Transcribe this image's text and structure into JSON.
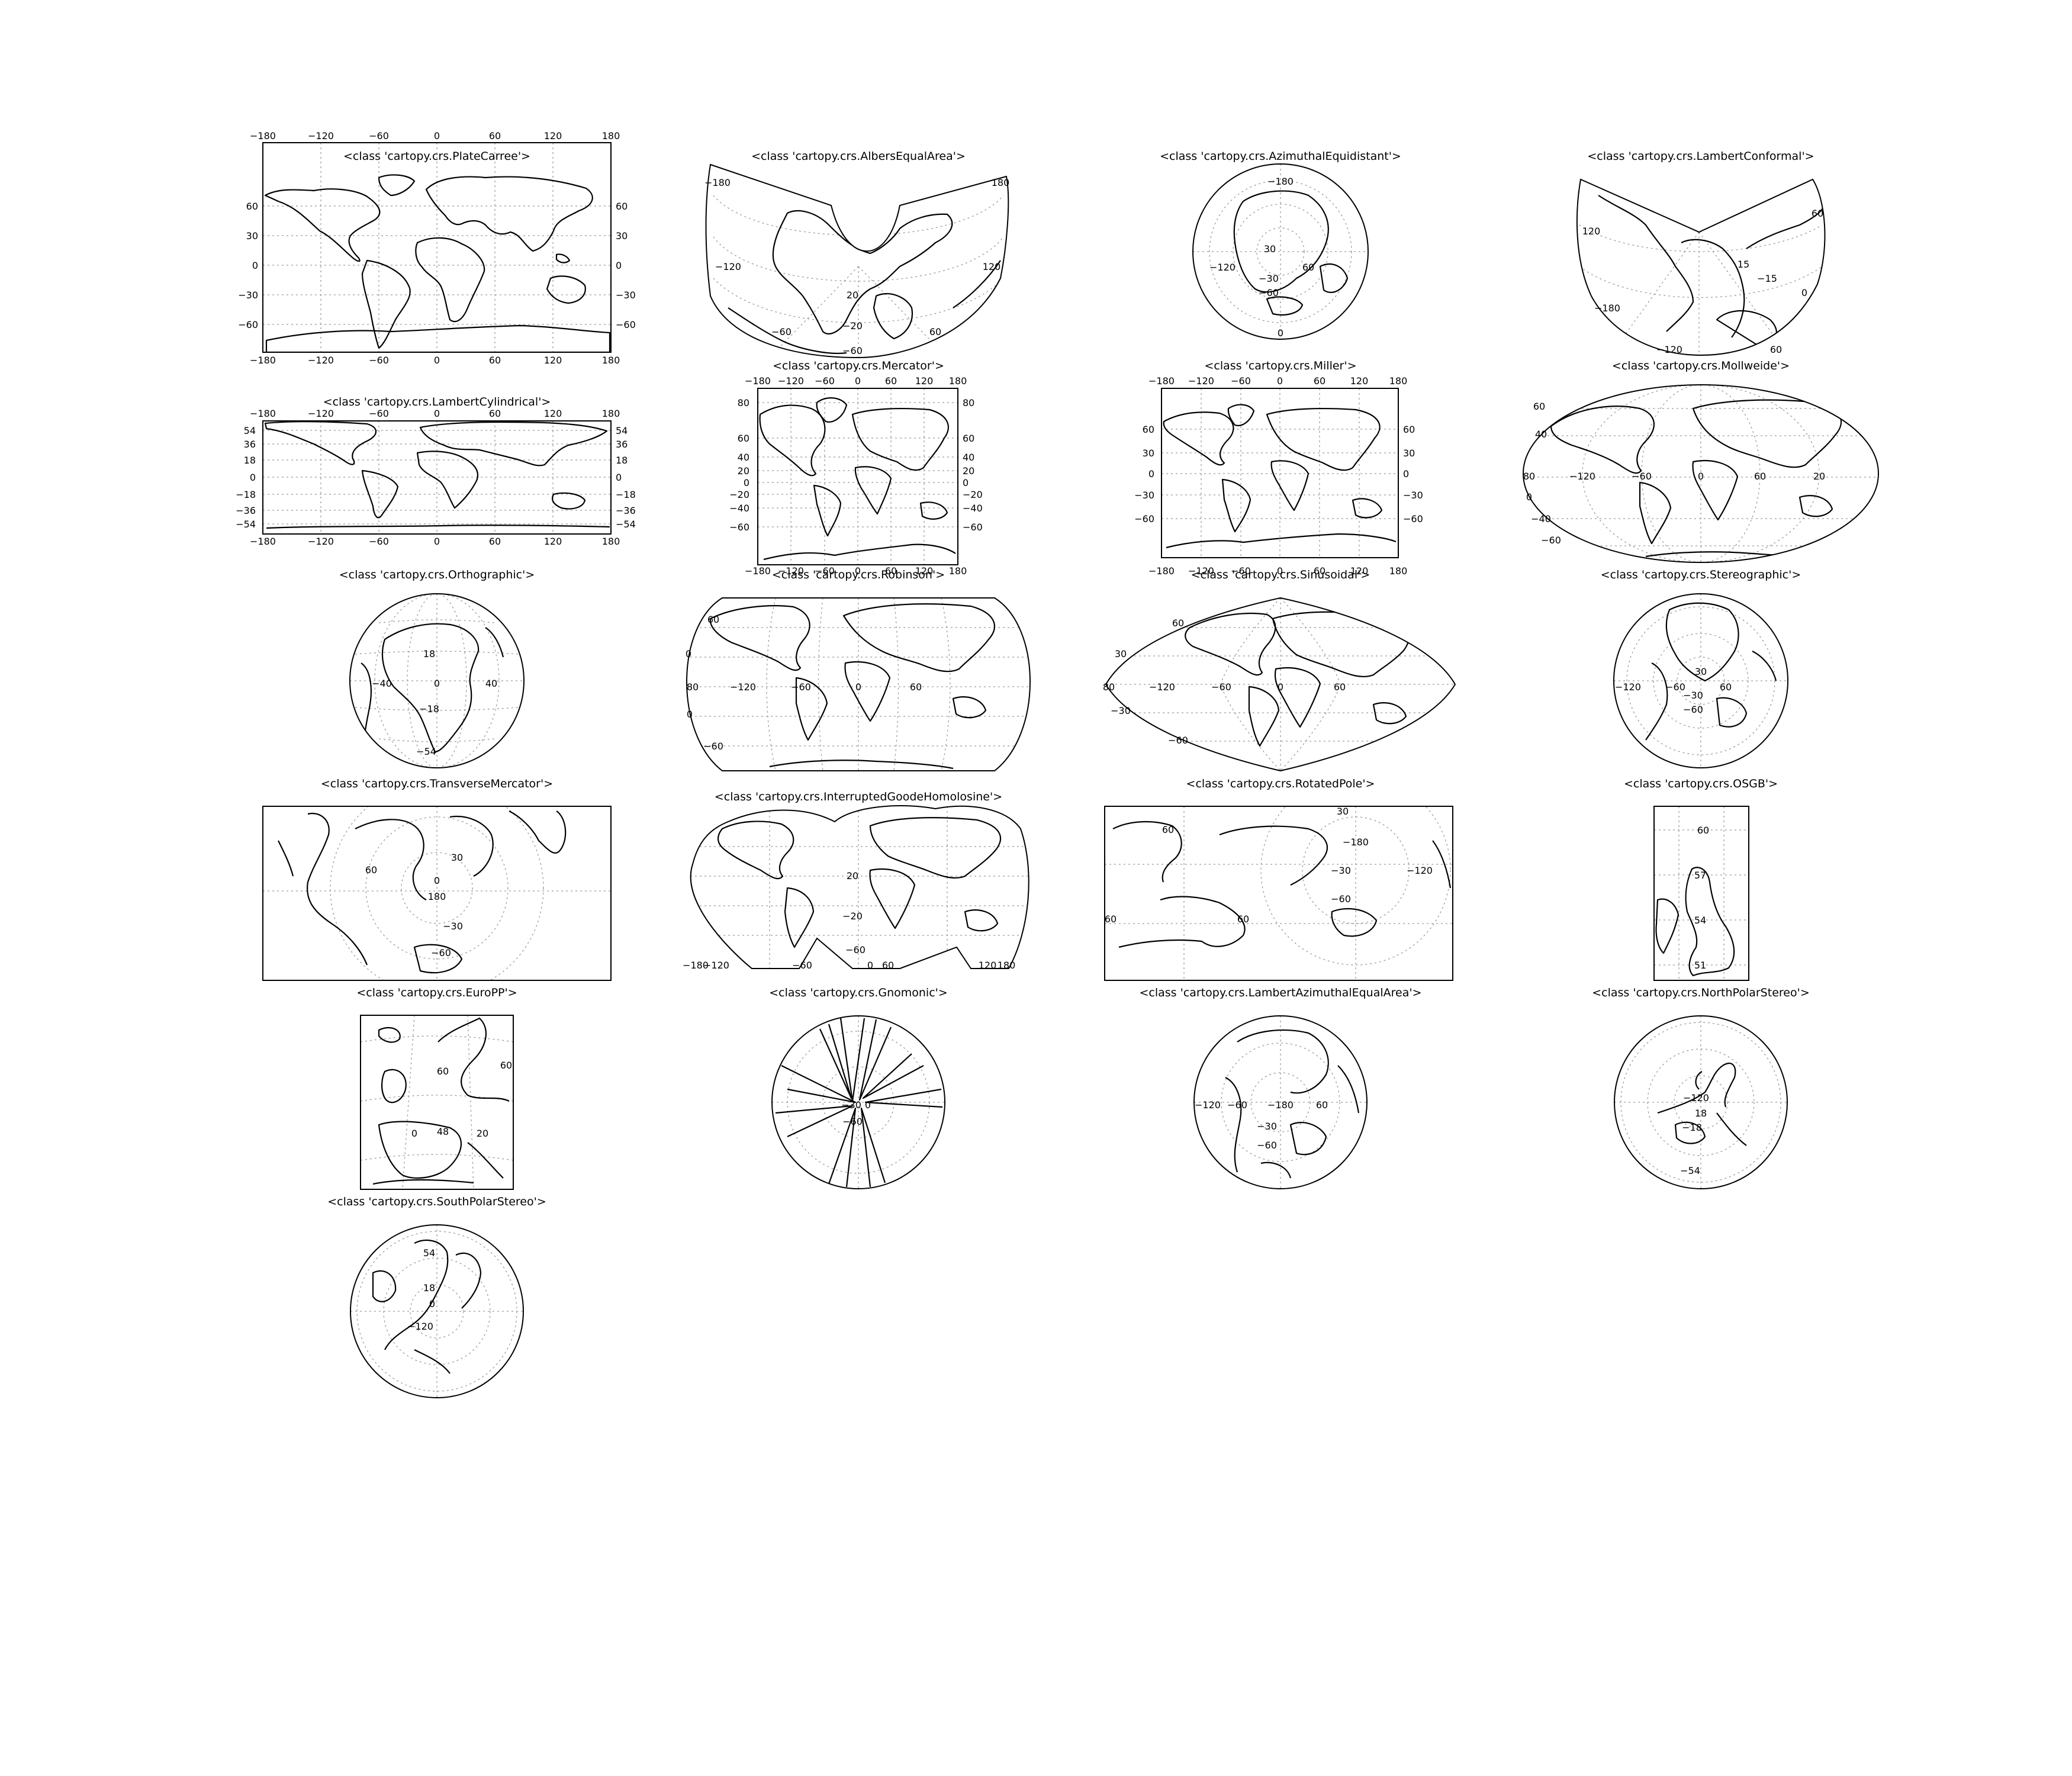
{
  "figure": {
    "panels": [
      {
        "id": "platecarree",
        "title": "<class 'cartopy.crs.PlateCarree'>",
        "labels": {
          "top": [
            "−180",
            "−120",
            "−60",
            "0",
            "60",
            "120",
            "180"
          ],
          "bottom": [
            "−180",
            "−120",
            "−60",
            "0",
            "60",
            "120",
            "180"
          ],
          "left": [
            "60",
            "30",
            "0",
            "−30",
            "−60"
          ],
          "right": [
            "60",
            "30",
            "0",
            "−30",
            "−60"
          ]
        }
      },
      {
        "id": "albersequalarea",
        "title": "<class 'cartopy.crs.AlbersEqualArea'>",
        "labels": {
          "inside": [
            "−180",
            "180",
            "−120",
            "120",
            "20",
            "−20",
            "−60",
            "60",
            "−60"
          ]
        }
      },
      {
        "id": "azimuthalequidistant",
        "title": "<class 'cartopy.crs.AzimuthalEquidistant'>",
        "labels": {
          "inside": [
            "−180",
            "30",
            "−120",
            "60",
            "−30",
            "−60",
            "0"
          ]
        }
      },
      {
        "id": "lambertconformal",
        "title": "<class 'cartopy.crs.LambertConformal'>",
        "labels": {
          "inside": [
            "60",
            "120",
            "15",
            "−15",
            "0",
            "−180",
            "−120",
            "60"
          ]
        }
      },
      {
        "id": "lambertcylindrical",
        "title": "<class 'cartopy.crs.LambertCylindrical'>",
        "labels": {
          "top": [
            "−180",
            "−120",
            "−60",
            "0",
            "60",
            "120",
            "180"
          ],
          "bottom": [
            "−180",
            "−120",
            "−60",
            "0",
            "60",
            "120",
            "180"
          ],
          "left": [
            "54",
            "36",
            "18",
            "0",
            "−18",
            "−36",
            "−54"
          ],
          "right": [
            "54",
            "36",
            "18",
            "0",
            "−18",
            "−36",
            "−54"
          ]
        }
      },
      {
        "id": "mercator",
        "title": "<class 'cartopy.crs.Mercator'>",
        "labels": {
          "top": [
            "−180",
            "−120",
            "−60",
            "0",
            "60",
            "120",
            "180"
          ],
          "bottom": [
            "−180",
            "−120",
            "−60",
            "0",
            "60",
            "120",
            "180"
          ],
          "left": [
            "80",
            "60",
            "40",
            "20",
            "0",
            "−20",
            "−40",
            "−60"
          ],
          "right": [
            "80",
            "60",
            "40",
            "20",
            "0",
            "−20",
            "−40",
            "−60"
          ]
        }
      },
      {
        "id": "miller",
        "title": "<class 'cartopy.crs.Miller'>",
        "labels": {
          "top": [
            "−180",
            "−120",
            "−60",
            "0",
            "60",
            "120",
            "180"
          ],
          "bottom": [
            "−180",
            "−120",
            "−60",
            "0",
            "60",
            "120",
            "180"
          ],
          "left": [
            "60",
            "30",
            "0",
            "−30",
            "−60"
          ],
          "right": [
            "60",
            "30",
            "0",
            "−30",
            "−60"
          ]
        }
      },
      {
        "id": "mollweide",
        "title": "<class 'cartopy.crs.Mollweide'>",
        "labels": {
          "inside": [
            "60",
            "40",
            "−120",
            "−60",
            "0",
            "60",
            "80",
            "0",
            "−40",
            "−60",
            "20"
          ]
        }
      },
      {
        "id": "orthographic",
        "title": "<class 'cartopy.crs.Orthographic'>",
        "labels": {
          "inside": [
            "18",
            "−40",
            "0",
            "40",
            "−18",
            "−54"
          ]
        }
      },
      {
        "id": "robinson",
        "title": "<class 'cartopy.crs.Robinson'>",
        "labels": {
          "inside": [
            "60",
            "0",
            "80",
            "−120",
            "−60",
            "0",
            "60",
            "0",
            "−60"
          ]
        }
      },
      {
        "id": "sinusoidal",
        "title": "<class 'cartopy.crs.Sinusoidal'>",
        "labels": {
          "inside": [
            "60",
            "30",
            "80",
            "−120",
            "−60",
            "0",
            "60",
            "−30",
            "−60"
          ]
        }
      },
      {
        "id": "stereographic",
        "title": "<class 'cartopy.crs.Stereographic'>",
        "labels": {
          "inside": [
            "30",
            "−120",
            "−60",
            "60",
            "−30",
            "−60"
          ]
        }
      },
      {
        "id": "transversemercator",
        "title": "<class 'cartopy.crs.TransverseMercator'>",
        "labels": {
          "inside": [
            "30",
            "60",
            "0",
            "180",
            "−30",
            "−60"
          ]
        }
      },
      {
        "id": "interruptedgoodehomolosine",
        "title": "<class 'cartopy.crs.InterruptedGoodeHomolosine'>",
        "labels": {
          "inside": [
            "20",
            "−20",
            "−60",
            "0",
            "60",
            "−180",
            "−120",
            "−60",
            "120",
            "180"
          ]
        }
      },
      {
        "id": "rotatedpole",
        "title": "<class 'cartopy.crs.RotatedPole'>",
        "labels": {
          "inside": [
            "30",
            "60",
            "−180",
            "−30",
            "−120",
            "−60",
            "60",
            "60"
          ]
        }
      },
      {
        "id": "osgb",
        "title": "<class 'cartopy.crs.OSGB'>",
        "labels": {
          "inside": [
            "60",
            "57",
            "54",
            "51"
          ]
        }
      },
      {
        "id": "europp",
        "title": "<class 'cartopy.crs.EuroPP'>",
        "labels": {
          "inside": [
            "60",
            "60",
            "0",
            "48",
            "20"
          ]
        }
      },
      {
        "id": "gnomonic",
        "title": "<class 'cartopy.crs.Gnomonic'>",
        "labels": {
          "inside": [
            "−30",
            "0",
            "−60"
          ]
        }
      },
      {
        "id": "lambertazimuthalequalarea",
        "title": "<class 'cartopy.crs.LambertAzimuthalEqualArea'>",
        "labels": {
          "inside": [
            "−120",
            "−60",
            "−180",
            "60",
            "−30",
            "−60"
          ]
        }
      },
      {
        "id": "northpolarstereo",
        "title": "<class 'cartopy.crs.NorthPolarStereo'>",
        "labels": {
          "inside": [
            "−120",
            "18",
            "−18",
            "−54"
          ]
        }
      },
      {
        "id": "southpolarstereo",
        "title": "<class 'cartopy.crs.SouthPolarStereo'>",
        "labels": {
          "inside": [
            "54",
            "18",
            "0",
            "−120"
          ]
        }
      }
    ]
  }
}
